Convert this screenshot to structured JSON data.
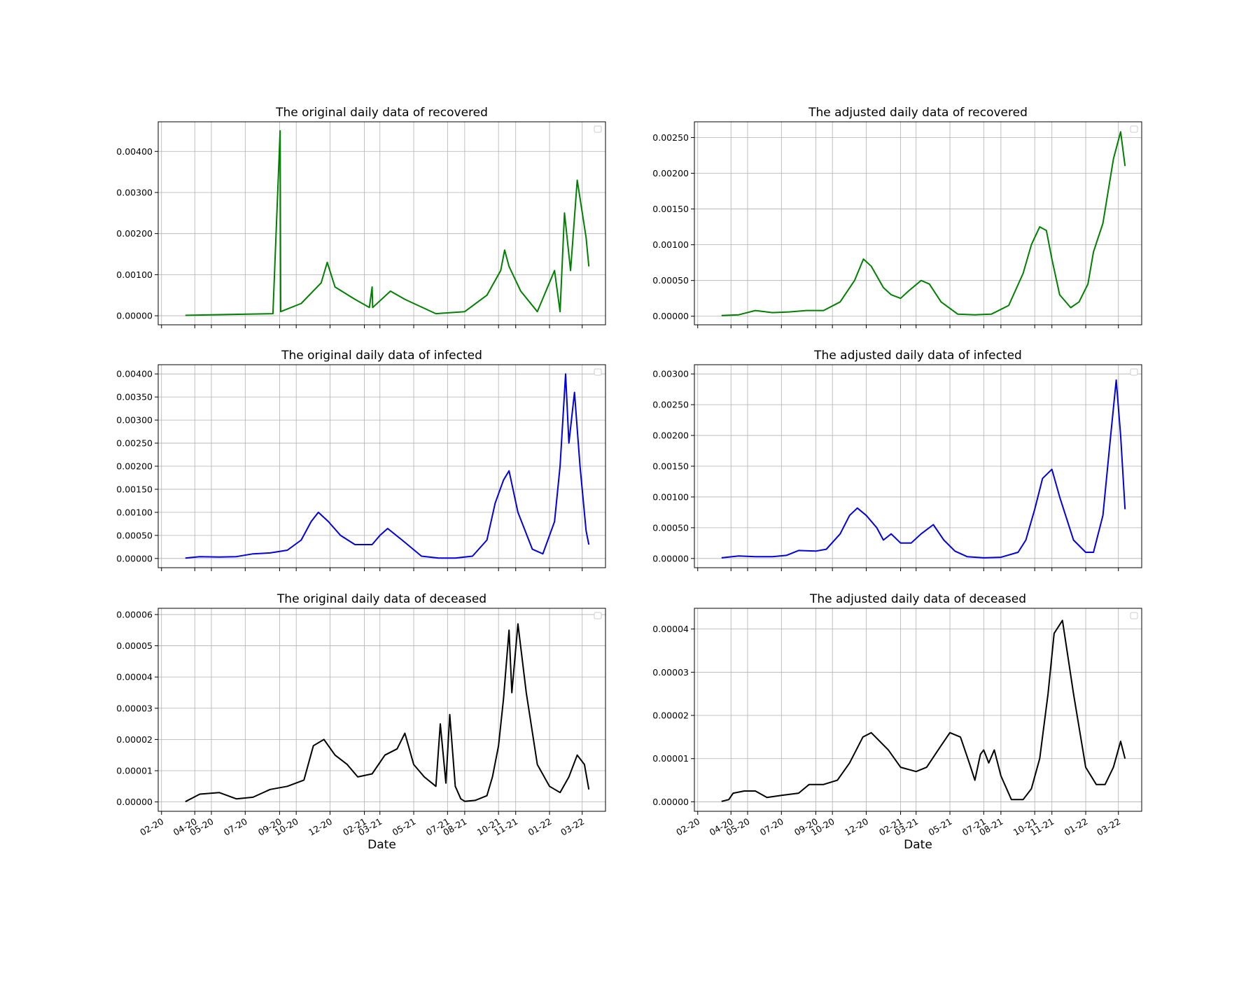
{
  "figure": {
    "xlabel": "Date",
    "x_tick_labels": [
      "02-20",
      "04-20",
      "05-20",
      "07-20",
      "09-20",
      "10-20",
      "12-20",
      "02-21",
      "03-21",
      "05-21",
      "07-21",
      "08-21",
      "10-21",
      "11-21",
      "01-22",
      "03-22"
    ]
  },
  "chart_data": [
    {
      "id": "orig-recovered",
      "type": "line",
      "title": "The original daily data of recovered",
      "color": "#008000",
      "xlabel": "",
      "ylabel": "",
      "grid": true,
      "legend": "top-right",
      "ylim": [
        -0.00022,
        0.00472
      ],
      "yticks": [
        "0.00000",
        "0.00100",
        "0.00200",
        "0.00300",
        "0.00400"
      ],
      "x": [
        "2020-03-15",
        "2020-06-01",
        "2020-08-20",
        "2020-09-02",
        "2020-09-03",
        "2020-10-10",
        "2020-11-15",
        "2020-11-26",
        "2020-12-10",
        "2021-01-15",
        "2021-02-10",
        "2021-02-15",
        "2021-02-16",
        "2021-03-20",
        "2021-04-15",
        "2021-06-10",
        "2021-08-01",
        "2021-09-10",
        "2021-10-05",
        "2021-10-12",
        "2021-10-20",
        "2021-11-10",
        "2021-12-10",
        "2022-01-10",
        "2022-01-20",
        "2022-01-28",
        "2022-02-08",
        "2022-02-20",
        "2022-03-08",
        "2022-03-13"
      ],
      "y": [
        1e-05,
        3e-05,
        5e-05,
        0.0045,
        0.0001,
        0.0003,
        0.0008,
        0.0013,
        0.0007,
        0.0004,
        0.0002,
        0.0007,
        0.0002,
        0.0006,
        0.0004,
        5e-05,
        0.0001,
        0.0005,
        0.0011,
        0.0016,
        0.0012,
        0.0006,
        0.0001,
        0.0011,
        0.0001,
        0.0025,
        0.0011,
        0.0033,
        0.0019,
        0.0012
      ]
    },
    {
      "id": "adj-recovered",
      "type": "line",
      "title": "The adjusted daily data of recovered",
      "color": "#008000",
      "xlabel": "",
      "ylabel": "",
      "grid": true,
      "legend": "top-right",
      "ylim": [
        -0.00012,
        0.00272
      ],
      "yticks": [
        "0.00000",
        "0.00050",
        "0.00100",
        "0.00150",
        "0.00200",
        "0.00250"
      ],
      "x": [
        "2020-03-15",
        "2020-04-15",
        "2020-05-15",
        "2020-06-15",
        "2020-07-15",
        "2020-08-15",
        "2020-09-15",
        "2020-10-15",
        "2020-11-10",
        "2020-11-26",
        "2020-12-10",
        "2021-01-01",
        "2021-01-15",
        "2021-02-01",
        "2021-02-15",
        "2021-03-10",
        "2021-03-25",
        "2021-04-15",
        "2021-05-15",
        "2021-06-15",
        "2021-07-15",
        "2021-08-15",
        "2021-09-10",
        "2021-09-25",
        "2021-10-10",
        "2021-10-22",
        "2021-11-01",
        "2021-11-15",
        "2021-12-05",
        "2021-12-20",
        "2022-01-05",
        "2022-01-15",
        "2022-02-01",
        "2022-02-20",
        "2022-03-05",
        "2022-03-13"
      ],
      "y": [
        1e-05,
        2e-05,
        8e-05,
        5e-05,
        6e-05,
        8e-05,
        8e-05,
        0.0002,
        0.0005,
        0.0008,
        0.0007,
        0.0004,
        0.0003,
        0.00025,
        0.00035,
        0.0005,
        0.00045,
        0.0002,
        3e-05,
        2e-05,
        3e-05,
        0.00015,
        0.0006,
        0.001,
        0.00125,
        0.0012,
        0.0008,
        0.0003,
        0.00012,
        0.0002,
        0.00045,
        0.0009,
        0.0013,
        0.0022,
        0.00258,
        0.0021
      ]
    },
    {
      "id": "orig-infected",
      "type": "line",
      "title": "The original daily data of infected",
      "color": "#0000e0",
      "xlabel": "",
      "ylabel": "",
      "grid": true,
      "legend": "top-right",
      "ylim": [
        -0.0002,
        0.0042
      ],
      "yticks": [
        "0.00000",
        "0.00050",
        "0.00100",
        "0.00150",
        "0.00200",
        "0.00250",
        "0.00300",
        "0.00350",
        "0.00400"
      ],
      "x": [
        "2020-03-15",
        "2020-04-10",
        "2020-05-15",
        "2020-06-15",
        "2020-07-15",
        "2020-08-15",
        "2020-09-15",
        "2020-10-10",
        "2020-10-28",
        "2020-11-10",
        "2020-11-28",
        "2020-12-20",
        "2021-01-15",
        "2021-02-15",
        "2021-03-01",
        "2021-03-15",
        "2021-04-10",
        "2021-05-15",
        "2021-06-15",
        "2021-07-15",
        "2021-08-15",
        "2021-09-10",
        "2021-09-25",
        "2021-10-10",
        "2021-10-20",
        "2021-11-05",
        "2021-12-01",
        "2021-12-20",
        "2022-01-10",
        "2022-01-20",
        "2022-01-30",
        "2022-02-05",
        "2022-02-15",
        "2022-02-25",
        "2022-03-08",
        "2022-03-13"
      ],
      "y": [
        1e-05,
        4e-05,
        3e-05,
        4e-05,
        0.0001,
        0.00012,
        0.00018,
        0.0004,
        0.0008,
        0.001,
        0.0008,
        0.0005,
        0.0003,
        0.0003,
        0.0005,
        0.00065,
        0.0004,
        5e-05,
        1e-05,
        1e-05,
        5e-05,
        0.0004,
        0.0012,
        0.0017,
        0.0019,
        0.001,
        0.0002,
        0.0001,
        0.0008,
        0.002,
        0.004,
        0.0025,
        0.0036,
        0.002,
        0.0006,
        0.0003
      ]
    },
    {
      "id": "adj-infected",
      "type": "line",
      "title": "The adjusted daily data of infected",
      "color": "#0000e0",
      "xlabel": "",
      "ylabel": "",
      "grid": true,
      "legend": "top-right",
      "ylim": [
        -0.00015,
        0.00315
      ],
      "yticks": [
        "0.00000",
        "0.00050",
        "0.00100",
        "0.00150",
        "0.00200",
        "0.00250",
        "0.00300"
      ],
      "x": [
        "2020-03-15",
        "2020-04-15",
        "2020-05-15",
        "2020-06-15",
        "2020-07-10",
        "2020-08-01",
        "2020-09-01",
        "2020-09-20",
        "2020-10-15",
        "2020-11-01",
        "2020-11-15",
        "2020-12-01",
        "2020-12-20",
        "2021-01-01",
        "2021-01-15",
        "2021-02-01",
        "2021-02-20",
        "2021-03-10",
        "2021-04-01",
        "2021-04-20",
        "2021-05-10",
        "2021-06-01",
        "2021-07-01",
        "2021-08-01",
        "2021-09-01",
        "2021-09-15",
        "2021-10-01",
        "2021-10-15",
        "2021-11-01",
        "2021-11-15",
        "2021-12-10",
        "2022-01-01",
        "2022-01-15",
        "2022-02-01",
        "2022-02-15",
        "2022-02-25",
        "2022-03-05",
        "2022-03-13"
      ],
      "y": [
        1e-05,
        4e-05,
        3e-05,
        3e-05,
        5e-05,
        0.00013,
        0.00012,
        0.00015,
        0.0004,
        0.0007,
        0.00082,
        0.0007,
        0.0005,
        0.0003,
        0.0004,
        0.00025,
        0.00025,
        0.0004,
        0.00055,
        0.0003,
        0.00012,
        3e-05,
        1e-05,
        2e-05,
        0.0001,
        0.0003,
        0.0008,
        0.0013,
        0.00145,
        0.001,
        0.0003,
        0.0001,
        0.0001,
        0.0007,
        0.002,
        0.0029,
        0.002,
        0.0008
      ]
    },
    {
      "id": "orig-deceased",
      "type": "line",
      "title": "The original daily data of deceased",
      "color": "#000000",
      "xlabel": "Date",
      "ylabel": "",
      "grid": true,
      "legend": "top-right",
      "ylim": [
        -3e-06,
        6.2e-05
      ],
      "yticks": [
        "0.00000",
        "0.00001",
        "0.00002",
        "0.00003",
        "0.00004",
        "0.00005",
        "0.00006"
      ],
      "x": [
        "2020-03-15",
        "2020-04-10",
        "2020-05-15",
        "2020-06-15",
        "2020-07-15",
        "2020-08-15",
        "2020-09-15",
        "2020-10-15",
        "2020-11-01",
        "2020-11-20",
        "2020-12-10",
        "2021-01-01",
        "2021-01-20",
        "2021-02-15",
        "2021-03-10",
        "2021-04-01",
        "2021-04-15",
        "2021-05-01",
        "2021-05-20",
        "2021-06-10",
        "2021-06-18",
        "2021-06-28",
        "2021-07-05",
        "2021-07-15",
        "2021-07-25",
        "2021-08-01",
        "2021-08-20",
        "2021-09-10",
        "2021-09-20",
        "2021-10-01",
        "2021-10-10",
        "2021-10-20",
        "2021-10-25",
        "2021-11-05",
        "2021-11-20",
        "2021-12-10",
        "2022-01-01",
        "2022-01-20",
        "2022-02-05",
        "2022-02-20",
        "2022-03-05",
        "2022-03-13"
      ],
      "y": [
        1e-07,
        2.5e-06,
        3e-06,
        1e-06,
        1.5e-06,
        4e-06,
        5e-06,
        7e-06,
        1.8e-05,
        2e-05,
        1.5e-05,
        1.2e-05,
        8e-06,
        9e-06,
        1.5e-05,
        1.7e-05,
        2.2e-05,
        1.2e-05,
        8e-06,
        5e-06,
        2.5e-05,
        6e-06,
        2.8e-05,
        5e-06,
        1e-06,
        2e-07,
        5e-07,
        2e-06,
        8e-06,
        1.8e-05,
        3.3e-05,
        5.5e-05,
        3.5e-05,
        5.7e-05,
        3.5e-05,
        1.2e-05,
        5e-06,
        3e-06,
        8e-06,
        1.5e-05,
        1.2e-05,
        4e-06
      ]
    },
    {
      "id": "adj-deceased",
      "type": "line",
      "title": "The adjusted daily data of deceased",
      "color": "#000000",
      "xlabel": "Date",
      "ylabel": "",
      "grid": true,
      "legend": "top-right",
      "ylim": [
        -2.2e-06,
        4.48e-05
      ],
      "yticks": [
        "0.00000",
        "0.00001",
        "0.00002",
        "0.00003",
        "0.00004"
      ],
      "x": [
        "2020-03-15",
        "2020-03-28",
        "2020-04-05",
        "2020-04-25",
        "2020-05-15",
        "2020-06-05",
        "2020-07-01",
        "2020-08-01",
        "2020-08-20",
        "2020-09-15",
        "2020-10-10",
        "2020-11-01",
        "2020-11-25",
        "2020-12-10",
        "2021-01-10",
        "2021-02-01",
        "2021-03-01",
        "2021-03-20",
        "2021-04-15",
        "2021-05-01",
        "2021-05-20",
        "2021-06-05",
        "2021-06-15",
        "2021-06-25",
        "2021-07-01",
        "2021-07-10",
        "2021-07-20",
        "2021-08-01",
        "2021-08-20",
        "2021-09-10",
        "2021-09-25",
        "2021-10-10",
        "2021-10-25",
        "2021-11-05",
        "2021-11-20",
        "2021-12-10",
        "2022-01-01",
        "2022-01-20",
        "2022-02-05",
        "2022-02-20",
        "2022-03-05",
        "2022-03-13"
      ],
      "y": [
        1e-07,
        5e-07,
        2e-06,
        2.5e-06,
        2.5e-06,
        1e-06,
        1.5e-06,
        2e-06,
        4e-06,
        4e-06,
        5e-06,
        9e-06,
        1.5e-05,
        1.6e-05,
        1.2e-05,
        8e-06,
        7e-06,
        8e-06,
        1.3e-05,
        1.6e-05,
        1.5e-05,
        9e-06,
        5e-06,
        1.1e-05,
        1.2e-05,
        9e-06,
        1.2e-05,
        6e-06,
        5e-07,
        5e-07,
        3e-06,
        1e-05,
        2.5e-05,
        3.9e-05,
        4.2e-05,
        2.5e-05,
        8e-06,
        4e-06,
        4e-06,
        8e-06,
        1.4e-05,
        1e-05
      ]
    }
  ]
}
